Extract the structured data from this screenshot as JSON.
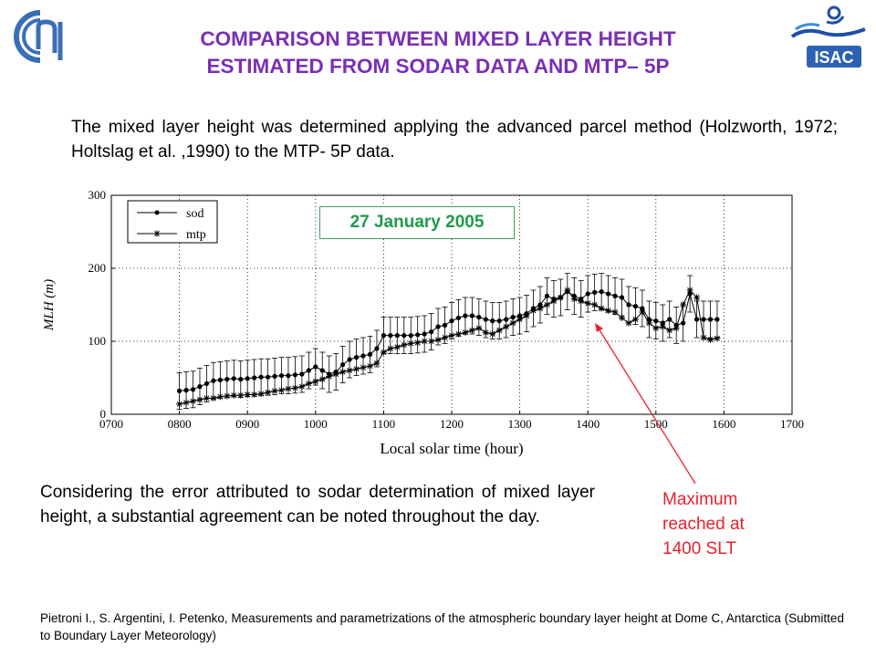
{
  "header": {
    "title_line1": "COMPARISON BETWEEN MIXED LAYER HEIGHT",
    "title_line2": "ESTIMATED FROM SODAR DATA AND MTP– 5P"
  },
  "logos": {
    "left": "cnr-logo",
    "right": "isac-logo",
    "right_text": "ISAC"
  },
  "intro_text": "The mixed layer height was determined applying the advanced parcel method (Holzworth, 1972; Holtslag et al. ,1990) to the MTP- 5P data.",
  "conclusion_text": "Considering the error attributed to sodar determination of mixed layer height, a substantial agreement can be noted throughout the day.",
  "annotation": {
    "text_line1": "Maximum",
    "text_line2": "reached at",
    "text_line3": "1400 SLT",
    "color": "#e8222c"
  },
  "reference": "Pietroni I., S. Argentini, I. Petenko, Measurements and parametrizations of the atmospheric boundary layer height at Dome C, Antarctica (Submitted to Boundary Layer Meteorology)",
  "colors": {
    "title": "#7b2fb4",
    "date_box": "#1f9b4b"
  },
  "chart_data": {
    "type": "line",
    "date_label": "27 January 2005",
    "xlabel": "Local solar time (hour)",
    "ylabel": "MLH (m)",
    "xlim": [
      700,
      1700
    ],
    "ylim": [
      0,
      300
    ],
    "xticks": [
      "0700",
      "0800",
      "0900",
      "1000",
      "1100",
      "1200",
      "1300",
      "1400",
      "1500",
      "1600",
      "1700"
    ],
    "yticks": [
      "0",
      "100",
      "200",
      "300"
    ],
    "grid": true,
    "legend_position": "top-left",
    "series": [
      {
        "name": "sod",
        "marker": "dot",
        "x": [
          800,
          810,
          820,
          830,
          840,
          850,
          860,
          870,
          880,
          890,
          900,
          910,
          920,
          930,
          940,
          950,
          960,
          970,
          980,
          990,
          1000,
          1010,
          1020,
          1030,
          1040,
          1050,
          1060,
          1070,
          1080,
          1090,
          1100,
          1110,
          1120,
          1130,
          1140,
          1150,
          1160,
          1170,
          1180,
          1190,
          1200,
          1210,
          1220,
          1230,
          1240,
          1250,
          1260,
          1270,
          1280,
          1290,
          1300,
          1310,
          1320,
          1330,
          1340,
          1350,
          1360,
          1370,
          1380,
          1390,
          1400,
          1410,
          1420,
          1430,
          1440,
          1450,
          1460,
          1470,
          1480,
          1490,
          1500,
          1510,
          1520,
          1530,
          1540,
          1550,
          1560,
          1570,
          1580,
          1590
        ],
        "y": [
          32,
          33,
          34,
          38,
          42,
          46,
          47,
          48,
          49,
          48,
          49,
          50,
          51,
          51,
          52,
          53,
          53,
          54,
          55,
          60,
          65,
          60,
          55,
          58,
          68,
          75,
          78,
          80,
          82,
          90,
          108,
          108,
          108,
          108,
          108,
          109,
          110,
          113,
          120,
          122,
          128,
          132,
          135,
          135,
          133,
          130,
          128,
          128,
          130,
          133,
          135,
          138,
          145,
          150,
          162,
          158,
          160,
          168,
          162,
          158,
          165,
          167,
          168,
          165,
          162,
          160,
          150,
          148,
          145,
          130,
          128,
          125,
          130,
          122,
          125,
          165,
          130,
          130,
          130,
          130
        ],
        "error": 25
      },
      {
        "name": "mtp",
        "marker": "star",
        "x": [
          800,
          810,
          820,
          830,
          840,
          850,
          860,
          870,
          880,
          890,
          900,
          910,
          920,
          930,
          940,
          950,
          960,
          970,
          980,
          990,
          1000,
          1010,
          1020,
          1030,
          1040,
          1050,
          1060,
          1070,
          1080,
          1090,
          1100,
          1110,
          1120,
          1130,
          1140,
          1150,
          1160,
          1170,
          1180,
          1190,
          1200,
          1210,
          1220,
          1230,
          1240,
          1250,
          1260,
          1270,
          1280,
          1290,
          1300,
          1310,
          1320,
          1330,
          1340,
          1350,
          1360,
          1370,
          1380,
          1390,
          1400,
          1410,
          1420,
          1430,
          1440,
          1450,
          1460,
          1470,
          1480,
          1490,
          1500,
          1510,
          1520,
          1530,
          1540,
          1550,
          1560,
          1570,
          1580,
          1590
        ],
        "y": [
          14,
          16,
          18,
          20,
          22,
          22,
          24,
          25,
          26,
          26,
          27,
          27,
          28,
          30,
          32,
          33,
          35,
          36,
          38,
          42,
          45,
          48,
          52,
          55,
          58,
          60,
          62,
          64,
          66,
          70,
          85,
          90,
          92,
          95,
          97,
          98,
          100,
          100,
          102,
          105,
          108,
          110,
          112,
          115,
          118,
          112,
          110,
          115,
          120,
          125,
          130,
          135,
          142,
          145,
          150,
          155,
          160,
          170,
          158,
          155,
          152,
          150,
          145,
          142,
          140,
          132,
          125,
          130,
          140,
          125,
          118,
          120,
          115,
          118,
          150,
          170,
          160,
          105,
          102,
          104
        ]
      }
    ]
  }
}
